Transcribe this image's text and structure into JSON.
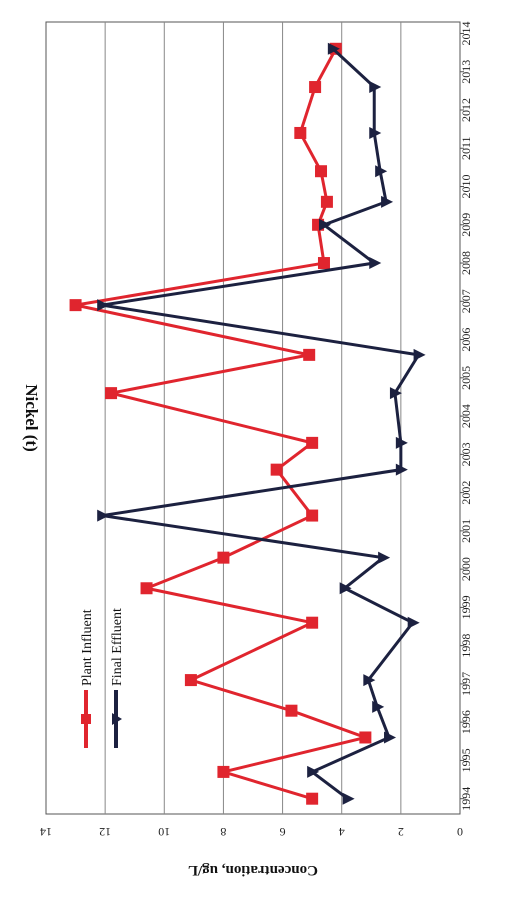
{
  "chart_data": {
    "type": "line",
    "title": "Nickel (t)",
    "ylabel": "Concentration, ug/L",
    "xlabel": "",
    "ylim": [
      0,
      14
    ],
    "yticks": [
      0,
      2,
      4,
      6,
      8,
      10,
      12,
      14
    ],
    "xticks": [
      1994,
      1995,
      1996,
      1997,
      1998,
      1999,
      2000,
      2001,
      2002,
      2003,
      2004,
      2005,
      2006,
      2007,
      2008,
      2009,
      2010,
      2011,
      2012,
      2013,
      2014
    ],
    "xlim": [
      1993.6,
      2014.3
    ],
    "grid": true,
    "legend_position": "top-left",
    "orientation": "rotated-90",
    "series": [
      {
        "name": "Plant Influent",
        "color": "#e0252e",
        "marker": "square",
        "points": [
          [
            1994.0,
            5.0
          ],
          [
            1994.7,
            8.0
          ],
          [
            1995.6,
            3.2
          ],
          [
            1996.3,
            5.7
          ],
          [
            1997.1,
            9.1
          ],
          [
            1998.6,
            5.0
          ],
          [
            1999.5,
            10.6
          ],
          [
            2000.3,
            8.0
          ],
          [
            2001.4,
            5.0
          ],
          [
            2002.6,
            6.2
          ],
          [
            2003.3,
            5.0
          ],
          [
            2004.6,
            11.8
          ],
          [
            2005.6,
            5.1
          ],
          [
            2006.9,
            13.0
          ],
          [
            2008.0,
            4.6
          ],
          [
            2009.0,
            4.8
          ],
          [
            2009.6,
            4.5
          ],
          [
            2010.4,
            4.7
          ],
          [
            2011.4,
            5.4
          ],
          [
            2012.6,
            4.9
          ],
          [
            2013.6,
            4.2
          ]
        ]
      },
      {
        "name": "Final Effluent",
        "color": "#1c2140",
        "marker": "triangle",
        "points": [
          [
            1994.0,
            3.8
          ],
          [
            1994.7,
            5.0
          ],
          [
            1995.6,
            2.4
          ],
          [
            1996.4,
            2.8
          ],
          [
            1997.1,
            3.1
          ],
          [
            1998.6,
            1.6
          ],
          [
            1999.5,
            3.9
          ],
          [
            2000.3,
            2.6
          ],
          [
            2001.4,
            12.1
          ],
          [
            2002.6,
            2.0
          ],
          [
            2003.3,
            2.0
          ],
          [
            2004.6,
            2.2
          ],
          [
            2005.6,
            1.4
          ],
          [
            2006.9,
            12.1
          ],
          [
            2008.0,
            2.9
          ],
          [
            2009.0,
            4.6
          ],
          [
            2009.6,
            2.5
          ],
          [
            2010.4,
            2.7
          ],
          [
            2011.4,
            2.9
          ],
          [
            2012.6,
            2.9
          ],
          [
            2013.6,
            4.3
          ]
        ]
      }
    ]
  }
}
